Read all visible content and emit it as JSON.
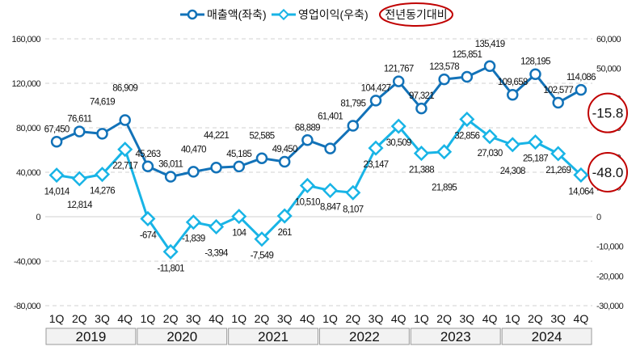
{
  "chart_data": {
    "type": "line",
    "title": "",
    "legend": {
      "position": "top",
      "items": [
        "매출액(좌축)",
        "영업이익(우축)"
      ],
      "note": "전년동기대비"
    },
    "categories": [
      "1Q",
      "2Q",
      "3Q",
      "4Q",
      "1Q",
      "2Q",
      "3Q",
      "4Q",
      "1Q",
      "2Q",
      "3Q",
      "4Q",
      "1Q",
      "2Q",
      "3Q",
      "4Q",
      "1Q",
      "2Q",
      "3Q",
      "4Q",
      "1Q",
      "2Q",
      "3Q",
      "4Q"
    ],
    "years": [
      "2019",
      "2020",
      "2021",
      "2022",
      "2023",
      "2024"
    ],
    "series": [
      {
        "name": "매출액(좌축)",
        "axis": "left",
        "color": "#1272B8",
        "values": [
          67450,
          76611,
          74619,
          86909,
          45263,
          36011,
          40470,
          44221,
          45185,
          52585,
          49450,
          68889,
          61401,
          81795,
          104427,
          121767,
          97321,
          123578,
          125851,
          135419,
          109658,
          128195,
          102577,
          114086
        ],
        "labels": [
          "67,450",
          "76,611",
          "74,619",
          "86,909",
          "45,263",
          "36,011",
          "40,470",
          "44,221",
          "45,185",
          "52,585",
          "49,450",
          "68,889",
          "61,401",
          "81,795",
          "104,427",
          "121,767",
          "97,321",
          "123,578",
          "125,851",
          "135,419",
          "109,658",
          "128,195",
          "102,577",
          "114,086"
        ]
      },
      {
        "name": "영업이익(우축)",
        "axis": "right",
        "color": "#18B4E6",
        "values": [
          14014,
          12814,
          14276,
          22717,
          -674,
          -11801,
          -1839,
          -3394,
          104,
          -7549,
          261,
          10510,
          8847,
          8107,
          23147,
          30509,
          21388,
          21895,
          32856,
          27030,
          24308,
          25187,
          21269,
          14064
        ],
        "labels": [
          "14,014",
          "12,814",
          "14,276",
          "22,717",
          "-674",
          "-11,801",
          "-1,839",
          "-3,394",
          "104",
          "-7,549",
          "261",
          "10,510",
          "8,847",
          "8,107",
          "23,147",
          "30,509",
          "21,388",
          "21,895",
          "32,856",
          "27,030",
          "24,308",
          "25,187",
          "21,269",
          "14,064"
        ]
      }
    ],
    "y_left": {
      "range": [
        -80000,
        160000
      ],
      "ticks": [
        "-80,000",
        "-40,000",
        "0",
        "40,000",
        "80,000",
        "120,000",
        "160,000"
      ]
    },
    "y_right": {
      "range": [
        -30000,
        60000
      ],
      "ticks": [
        "-30,000",
        "-20,000",
        "-10,000",
        "0",
        "10,000",
        "20,000",
        "30,000",
        "40,000",
        "50,000",
        "60,000"
      ]
    },
    "annotations": [
      {
        "series": "매출액(좌축)",
        "text": "-15.8",
        "color": "#C00000"
      },
      {
        "series": "영업이익(우축)",
        "text": "-48.0",
        "color": "#C00000"
      }
    ],
    "grid": true
  }
}
